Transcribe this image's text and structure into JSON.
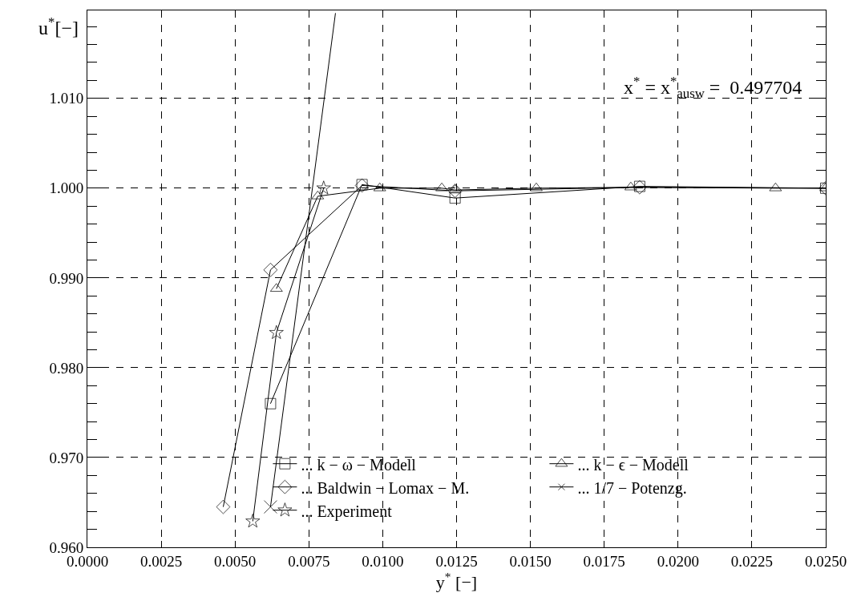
{
  "chart_data": {
    "type": "line",
    "xlabel": "y$^{*}$ [−]",
    "ylabel": "u$^{*}$[−]",
    "annotations": [
      "x$^{*}$ = x$^{*}$$_{ausw}$ =  0.497704"
    ],
    "xlim": [
      0.0,
      0.025
    ],
    "xticks": [
      {
        "value": 0.0,
        "label": "0.0000"
      },
      {
        "value": 0.0025,
        "label": "0.0025"
      },
      {
        "value": 0.005,
        "label": "0.0050"
      },
      {
        "value": 0.0075,
        "label": "0.0075"
      },
      {
        "value": 0.01,
        "label": "0.0100"
      },
      {
        "value": 0.0125,
        "label": "0.0125"
      },
      {
        "value": 0.015,
        "label": "0.0150"
      },
      {
        "value": 0.0175,
        "label": "0.0175"
      },
      {
        "value": 0.02,
        "label": "0.0200"
      },
      {
        "value": 0.0225,
        "label": "0.0225"
      },
      {
        "value": 0.025,
        "label": "0.0250"
      }
    ],
    "ylim": [
      0.96,
      1.0198
    ],
    "yticks": [
      {
        "value": 0.96,
        "label": "0.960"
      },
      {
        "value": 0.97,
        "label": "0.970"
      },
      {
        "value": 0.98,
        "label": "0.980"
      },
      {
        "value": 0.99,
        "label": "0.990"
      },
      {
        "value": 1.0,
        "label": "1.000"
      },
      {
        "value": 1.01,
        "label": "1.010"
      }
    ],
    "grid": true,
    "legend": "bottom",
    "line_style": "solid",
    "series": [
      {
        "name": "... k − ω − Modell",
        "color": "#000000",
        "marker": "square",
        "x": [
          0.0062,
          0.0093,
          0.01245,
          0.0187,
          0.025
        ],
        "values": [
          0.976,
          1.0004,
          0.9989,
          1.0002,
          1.0
        ]
      },
      {
        "name": "... k − ϵ − Modell",
        "color": "#000000",
        "marker": "triangle",
        "x": [
          0.0064,
          0.0078,
          0.0099,
          0.012,
          0.01245,
          0.0152,
          0.0184,
          0.0233,
          0.025
        ],
        "values": [
          0.9888,
          0.9991,
          1.0,
          1.0,
          0.9998,
          1.0,
          1.0001,
          1.0,
          1.0
        ]
      },
      {
        "name": "... Baldwin − Lomax − M.",
        "color": "#000000",
        "marker": "diamond",
        "x": [
          0.0046,
          0.0062,
          0.0093,
          0.01245,
          0.0187,
          0.025
        ],
        "values": [
          0.9645,
          0.9909,
          1.0003,
          0.9997,
          1.0001,
          1.0
        ]
      },
      {
        "name": "... 1/7 − Potenzg.",
        "color": "#000000",
        "marker": "cross",
        "x": [
          0.0062,
          0.0084
        ],
        "values": [
          0.9645,
          1.0195
        ]
      },
      {
        "name": "... Experiment",
        "color": "#000000",
        "marker": "star",
        "x": [
          0.0056,
          0.0064,
          0.008
        ],
        "values": [
          0.9629,
          0.9839,
          1.0
        ]
      }
    ]
  }
}
